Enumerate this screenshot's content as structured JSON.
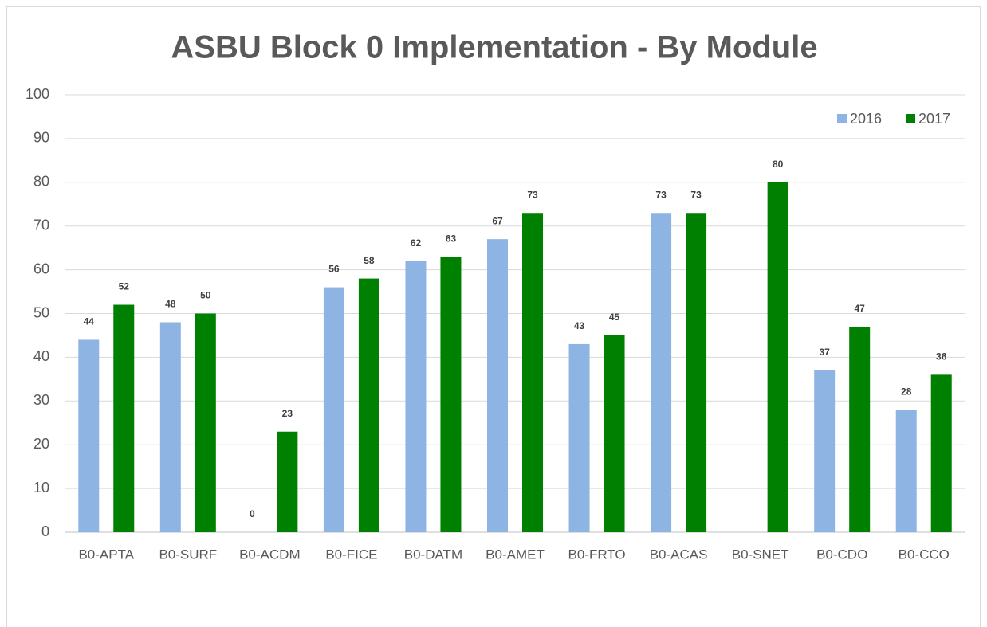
{
  "chart_data": {
    "type": "bar",
    "title": "ASBU Block 0 Implementation - By Module",
    "categories": [
      "B0-APTA",
      "B0-SURF",
      "B0-ACDM",
      "B0-FICE",
      "B0-DATM",
      "B0-AMET",
      "B0-FRTO",
      "B0-ACAS",
      "B0-SNET",
      "B0-CDO",
      "B0-CCO"
    ],
    "series": [
      {
        "name": "2016",
        "color": "#8eb4e3",
        "values": [
          44,
          48,
          0,
          56,
          62,
          67,
          43,
          73,
          null,
          37,
          28
        ]
      },
      {
        "name": "2017",
        "color": "#008000",
        "values": [
          52,
          50,
          23,
          58,
          63,
          73,
          45,
          73,
          80,
          47,
          36
        ]
      }
    ],
    "ylim": [
      0,
      100
    ],
    "yticks": [
      0,
      10,
      20,
      30,
      40,
      50,
      60,
      70,
      80,
      90,
      100
    ],
    "grid": true,
    "legend": "top-right"
  }
}
